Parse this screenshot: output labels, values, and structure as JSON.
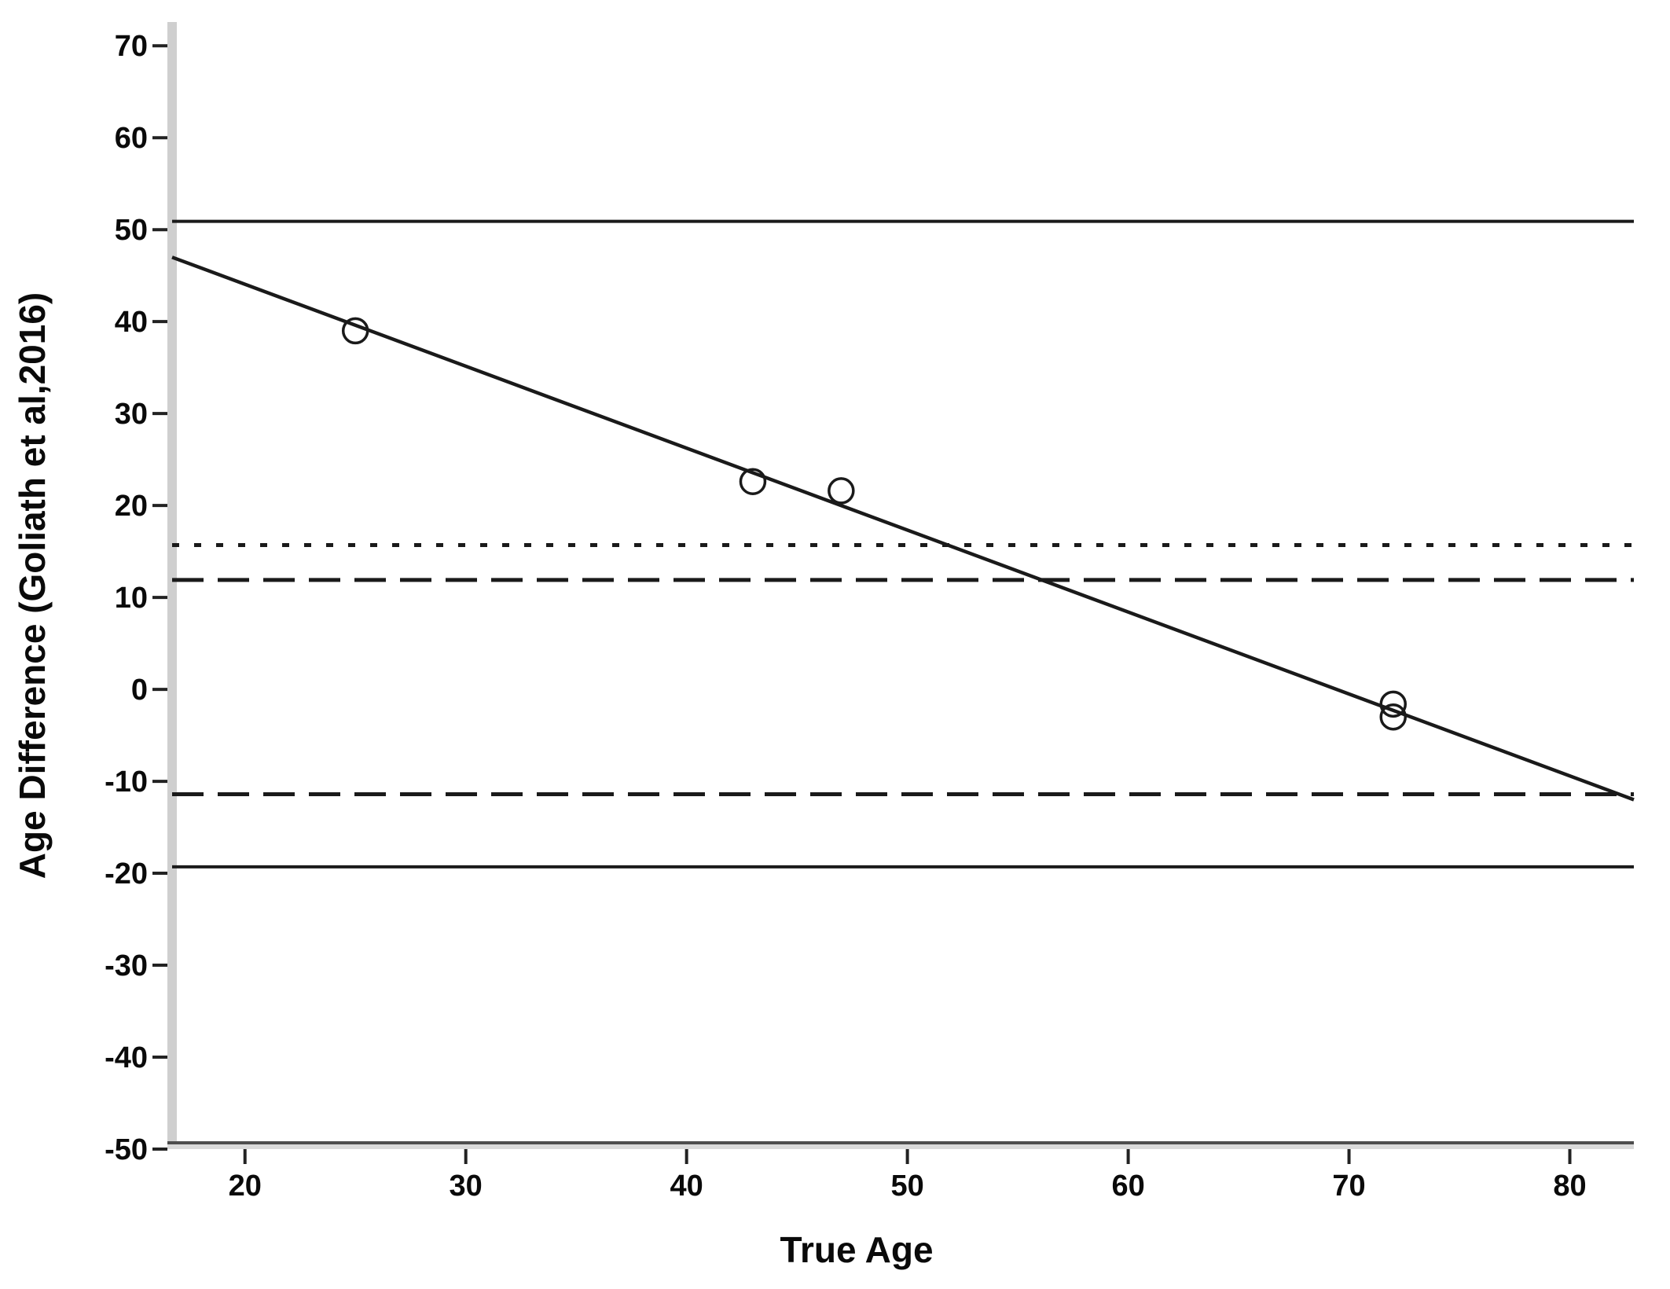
{
  "chart_data": {
    "type": "scatter",
    "title": "",
    "xlabel": "True Age",
    "ylabel": "Age Difference (Goliath et al,2016)",
    "xlim": [
      16.7,
      82.9
    ],
    "ylim": [
      -50,
      72.5
    ],
    "x_ticks": [
      20,
      30,
      40,
      50,
      60,
      70,
      80
    ],
    "y_ticks": [
      70,
      60,
      50,
      40,
      30,
      20,
      10,
      0,
      -10,
      -20,
      -30,
      -40,
      -50
    ],
    "grid": false,
    "legend": null,
    "points": [
      {
        "x": 25,
        "y": 39.0
      },
      {
        "x": 43,
        "y": 22.6
      },
      {
        "x": 47,
        "y": 21.6
      },
      {
        "x": 72,
        "y": -1.6
      },
      {
        "x": 72,
        "y": -3.0
      }
    ],
    "regression_line": {
      "x1": 16.7,
      "y1": 47.0,
      "x2": 82.9,
      "y2": -12.0
    },
    "reference_lines": [
      {
        "name": "upper-limit-line",
        "value": 50.9,
        "style": "solid"
      },
      {
        "name": "mean-dotted-line",
        "value": 15.7,
        "style": "dotted"
      },
      {
        "name": "upper-dashed-line",
        "value": 11.9,
        "style": "dashed"
      },
      {
        "name": "lower-dashed-line",
        "value": -11.4,
        "style": "dashed"
      },
      {
        "name": "lower-limit-line",
        "value": -19.3,
        "style": "solid"
      }
    ],
    "colors": {
      "line": "#1a1a1a",
      "axis_band": "#cfcfcf",
      "axis_dark_edge": "#4d4d4d",
      "tick": "#222222",
      "text": "#0a0a0a",
      "background": "#ffffff"
    }
  }
}
